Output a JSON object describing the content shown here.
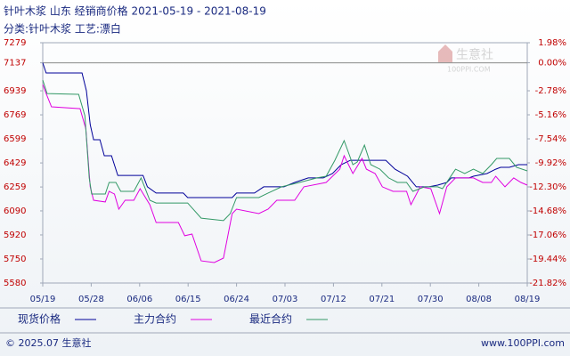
{
  "chart_data": {
    "type": "line",
    "title": "针叶木浆 山东 经销商价格 2021-05-19 - 2021-08-19",
    "subtitle": "分类:针叶木浆 工艺:漂白",
    "watermark": [
      "生意社",
      "100PPI.COM"
    ],
    "footer_left": "© 2025.07 生意社",
    "footer_right": "www.100PPI.com",
    "xlim": [
      0,
      10
    ],
    "xticks": [
      {
        "value": 0,
        "label": "05/19"
      },
      {
        "value": 1,
        "label": "05/28"
      },
      {
        "value": 2,
        "label": "06/06"
      },
      {
        "value": 3,
        "label": "06/15"
      },
      {
        "value": 4,
        "label": "06/24"
      },
      {
        "value": 5,
        "label": "07/03"
      },
      {
        "value": 6,
        "label": "07/12"
      },
      {
        "value": 7,
        "label": "07/21"
      },
      {
        "value": 8,
        "label": "07/30"
      },
      {
        "value": 9,
        "label": "08/08"
      },
      {
        "value": 10,
        "label": "08/19"
      }
    ],
    "ylim": [
      5580,
      7279
    ],
    "yticks": [
      7279,
      7137,
      6939,
      6769,
      6599,
      6429,
      6259,
      6090,
      5920,
      5750,
      5580
    ],
    "base": 7137,
    "y2lim": [
      -21.82,
      1.98
    ],
    "y2ticks": [
      {
        "value": 1.98,
        "label": "1.98%"
      },
      {
        "value": 0,
        "label": "0.00%"
      },
      {
        "value": -2.78,
        "label": "-2.78%"
      },
      {
        "value": -5.16,
        "label": "-5.16%"
      },
      {
        "value": -7.54,
        "label": "-7.54%"
      },
      {
        "value": -9.92,
        "label": "-9.92%"
      },
      {
        "value": -12.3,
        "label": "-12.30%"
      },
      {
        "value": -14.68,
        "label": "-14.68%"
      },
      {
        "value": -17.06,
        "label": "-17.06%"
      },
      {
        "value": -19.44,
        "label": "-19.44%"
      },
      {
        "value": -21.82,
        "label": "-21.82%"
      }
    ],
    "series": [
      {
        "name": "现货价格",
        "color": "#000099",
        "x": [
          0,
          0.07,
          0.81,
          0.9,
          0.98,
          1.05,
          1.18,
          1.27,
          1.42,
          1.55,
          2.07,
          2.16,
          2.34,
          2.9,
          2.99,
          3.91,
          4,
          4.37,
          4.56,
          4.98,
          5.2,
          5.48,
          5.79,
          5.98,
          6.16,
          6.35,
          6.53,
          6.72,
          7.08,
          7.27,
          7.53,
          7.71,
          7.97,
          8.15,
          8.34,
          8.43,
          8.8,
          8.89,
          9.17,
          9.35,
          9.45,
          9.63,
          9.82,
          10
        ],
        "values": [
          7137,
          7065,
          7065,
          6939,
          6700,
          6593,
          6593,
          6480,
          6480,
          6341,
          6341,
          6260,
          6216,
          6216,
          6184,
          6184,
          6216,
          6216,
          6260,
          6260,
          6291,
          6323,
          6323,
          6354,
          6417,
          6448,
          6448,
          6448,
          6448,
          6385,
          6335,
          6260,
          6260,
          6272,
          6291,
          6323,
          6323,
          6335,
          6354,
          6385,
          6398,
          6398,
          6417,
          6417
        ]
      },
      {
        "name": "主力合约",
        "color": "#e000e0",
        "x": [
          0,
          0.07,
          0.18,
          0.77,
          0.89,
          0.98,
          1.05,
          1.29,
          1.37,
          1.48,
          1.57,
          1.7,
          1.88,
          2.01,
          2.21,
          2.34,
          2.8,
          2.93,
          3.08,
          3.27,
          3.54,
          3.73,
          3.91,
          4,
          4.46,
          4.65,
          4.83,
          5.2,
          5.39,
          5.85,
          6.13,
          6.22,
          6.4,
          6.59,
          6.68,
          6.86,
          7.01,
          7.23,
          7.51,
          7.6,
          7.79,
          8.01,
          8.19,
          8.34,
          8.52,
          8.89,
          9.08,
          9.26,
          9.35,
          9.54,
          9.72,
          9.87,
          10
        ],
        "values": [
          6983,
          6920,
          6826,
          6813,
          6669,
          6260,
          6165,
          6153,
          6228,
          6209,
          6102,
          6165,
          6165,
          6247,
          6134,
          6008,
          6008,
          5914,
          5926,
          5737,
          5725,
          5756,
          6071,
          6102,
          6071,
          6102,
          6165,
          6165,
          6260,
          6291,
          6385,
          6480,
          6354,
          6461,
          6385,
          6354,
          6260,
          6228,
          6228,
          6134,
          6260,
          6247,
          6071,
          6260,
          6323,
          6323,
          6291,
          6291,
          6335,
          6260,
          6323,
          6291,
          6272
        ]
      },
      {
        "name": "最近合约",
        "color": "#339966",
        "x": [
          0,
          0.09,
          0.74,
          0.87,
          0.96,
          1.01,
          1.29,
          1.37,
          1.51,
          1.61,
          1.88,
          2.03,
          2.21,
          2.34,
          2.99,
          3.27,
          3.73,
          3.87,
          4,
          4.46,
          4.65,
          4.93,
          5.3,
          5.66,
          5.85,
          6.03,
          6.22,
          6.4,
          6.49,
          6.64,
          6.77,
          6.96,
          7.14,
          7.32,
          7.51,
          7.64,
          7.88,
          8.15,
          8.25,
          8.52,
          8.71,
          8.89,
          9.08,
          9.26,
          9.37,
          9.63,
          9.78,
          10
        ],
        "values": [
          7015,
          6920,
          6914,
          6763,
          6323,
          6209,
          6209,
          6291,
          6291,
          6228,
          6228,
          6323,
          6165,
          6146,
          6146,
          6039,
          6021,
          6071,
          6184,
          6184,
          6216,
          6260,
          6291,
          6323,
          6335,
          6448,
          6587,
          6417,
          6436,
          6555,
          6417,
          6385,
          6323,
          6291,
          6291,
          6228,
          6260,
          6260,
          6247,
          6385,
          6354,
          6385,
          6354,
          6417,
          6461,
          6461,
          6398,
          6373
        ]
      }
    ]
  }
}
